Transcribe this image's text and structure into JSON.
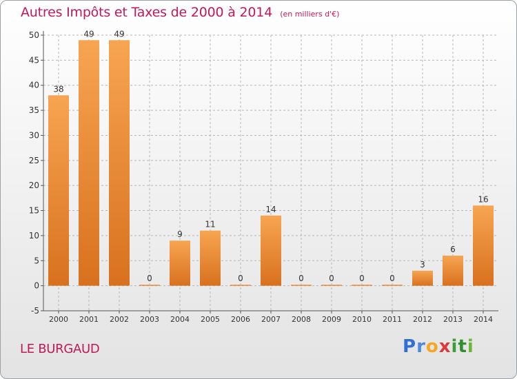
{
  "header": {
    "title": "Autres Impôts et Taxes de 2000 à 2014",
    "unit": "(en milliers d'€)"
  },
  "footer": {
    "place": "LE BURGAUD",
    "logo_letters": [
      "P",
      "r",
      "o",
      "x",
      "i",
      "t",
      "i"
    ],
    "logo_colors": [
      "#2f6fd6",
      "#4a8be0",
      "#f5a623",
      "#d93a3a",
      "#3a9e3a",
      "#2f8f2f",
      "#6bb539"
    ]
  },
  "colors": {
    "bar_top": "#f7a552",
    "bar_bottom": "#d8711e",
    "title": "#c2185b",
    "grid": "#b5b5b5"
  },
  "chart_data": {
    "type": "bar",
    "title": "Autres Impôts et Taxes de 2000 à 2014",
    "subtitle": "(en milliers d'€)",
    "categories": [
      "2000",
      "2001",
      "2002",
      "2003",
      "2004",
      "2005",
      "2006",
      "2007",
      "2008",
      "2009",
      "2010",
      "2011",
      "2012",
      "2013",
      "2014"
    ],
    "values": [
      38,
      49,
      49,
      0,
      9,
      11,
      0,
      14,
      0,
      0,
      0,
      0,
      3,
      6,
      16
    ],
    "data_labels": [
      "38",
      "49",
      "49",
      "0",
      "9",
      "11",
      "0",
      "14",
      "0",
      "0",
      "0",
      "0",
      "3",
      "6",
      "16"
    ],
    "y_ticks": [
      "-5",
      "0",
      "5",
      "10",
      "15",
      "20",
      "25",
      "30",
      "35",
      "40",
      "45",
      "50"
    ],
    "ylim": [
      -5,
      50
    ],
    "grid": true,
    "xlabel": "",
    "ylabel": ""
  }
}
